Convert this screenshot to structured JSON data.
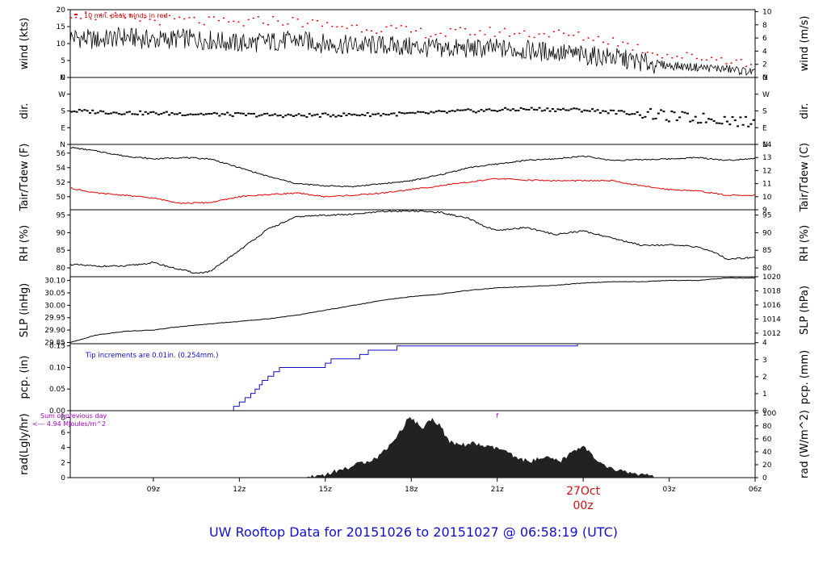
{
  "title": "UW Rooftop Data for 20151026  to  20151027 @ 06:58:19  (UTC)",
  "colors": {
    "title": "#1010c8",
    "date": "#d01010",
    "black": "#000000",
    "red": "#e00000",
    "blue": "#1010c0",
    "purple": "#a000c0"
  },
  "time_axis": {
    "start_hour": 6.1,
    "end_hour": 30.0,
    "ticks": [
      {
        "hour": 9,
        "label": "09z"
      },
      {
        "hour": 12,
        "label": "12z"
      },
      {
        "hour": 15,
        "label": "15z"
      },
      {
        "hour": 18,
        "label": "18z"
      },
      {
        "hour": 21,
        "label": "21z"
      },
      {
        "hour": 27,
        "label": "03z"
      },
      {
        "hour": 30,
        "label": "06z"
      }
    ],
    "date_label": "27Oct",
    "date_sub": "00z",
    "date_hour": 24
  },
  "chart_data": [
    {
      "type": "line",
      "id": "wind",
      "ylabel_left": "wind (kts)",
      "ylabel_right": "wind (m/s)",
      "ylim": [
        0,
        20
      ],
      "yticks": [
        0,
        5,
        10,
        15,
        20
      ],
      "right_ylim": [
        0,
        10.3
      ],
      "right_ticks": [
        0,
        2,
        4,
        6,
        8,
        10
      ],
      "annotation": "10 min. peak winds in red",
      "series": [
        {
          "name": "wind",
          "color": "#000000",
          "x": [
            6.1,
            7,
            8,
            9,
            10,
            11,
            12,
            13,
            14,
            15,
            16,
            17,
            18,
            19,
            20,
            21,
            22,
            23,
            24,
            25,
            26,
            27,
            28,
            29,
            30
          ],
          "y": [
            12,
            11,
            12,
            11,
            11.5,
            11,
            10,
            10.5,
            11,
            10,
            9.5,
            9.5,
            9,
            8.5,
            8.5,
            8.5,
            8,
            7.5,
            6.5,
            6,
            4.5,
            3.5,
            3,
            2.5,
            1.5
          ]
        },
        {
          "name": "10 min. peak winds",
          "color": "#e00000",
          "x": [
            6.1,
            7,
            8,
            9,
            10,
            11,
            12,
            13,
            14,
            15,
            16,
            17,
            18,
            19,
            20,
            21,
            22,
            23,
            24,
            25,
            26,
            27,
            28,
            29,
            30
          ],
          "y": [
            19,
            18,
            17.5,
            17,
            17,
            16.5,
            16,
            17,
            16.5,
            15.5,
            15,
            14.5,
            13.5,
            13,
            13.5,
            13.5,
            13,
            13,
            12,
            11,
            8.5,
            6.5,
            6,
            5.5,
            3.5
          ]
        }
      ]
    },
    {
      "type": "scatter",
      "id": "dir",
      "ylabel_left": "dir.",
      "ylabel_right": "dir.",
      "ylim": [
        0,
        360
      ],
      "ytick_values": [
        0,
        90,
        180,
        270,
        360
      ],
      "ytick_labels": [
        "N",
        "E",
        "S",
        "W",
        "N"
      ],
      "series": [
        {
          "name": "dir",
          "color": "#000000",
          "x": [
            6.1,
            8,
            10,
            12,
            14,
            16,
            18,
            20,
            22,
            24,
            26,
            27,
            28,
            29,
            30
          ],
          "y": [
            180,
            170,
            165,
            160,
            155,
            160,
            165,
            180,
            190,
            185,
            165,
            150,
            140,
            135,
            110
          ]
        }
      ]
    },
    {
      "type": "line",
      "id": "temp",
      "ylabel_left": "Tair/Tdew (F)",
      "ylabel_right": "Tair/Tdew (C)",
      "ylim": [
        48.2,
        57.2
      ],
      "yticks": [
        50,
        52,
        54,
        56
      ],
      "right_ylim": [
        9,
        14
      ],
      "right_ticks": [
        9,
        10,
        11,
        12,
        13,
        14
      ],
      "series": [
        {
          "name": "Tair",
          "color": "#000000",
          "x": [
            6.1,
            7,
            8,
            9,
            10,
            11,
            12,
            13,
            14,
            15,
            16,
            17,
            18,
            19,
            20,
            21,
            22,
            23,
            24,
            25,
            26,
            27,
            28,
            29,
            30
          ],
          "y": [
            56.8,
            56.3,
            55.6,
            55.2,
            55.4,
            55.2,
            54,
            52.8,
            51.8,
            51.5,
            51.4,
            51.8,
            52.2,
            53,
            54,
            54.5,
            55,
            55.2,
            55.6,
            55,
            55.1,
            55.2,
            55.4,
            55,
            55.3
          ]
        },
        {
          "name": "Tdew",
          "color": "#e00000",
          "x": [
            6.1,
            7,
            8,
            9,
            10,
            11,
            12,
            13,
            14,
            15,
            16,
            17,
            18,
            19,
            20,
            21,
            22,
            23,
            24,
            25,
            26,
            27,
            28,
            29,
            30
          ],
          "y": [
            51.2,
            50.5,
            50.2,
            49.8,
            49.1,
            49.2,
            50,
            50.3,
            50.5,
            50,
            50.2,
            50.5,
            51,
            51.5,
            52,
            52.5,
            52.3,
            52.2,
            52.2,
            52.2,
            51.5,
            51,
            50.8,
            50.2,
            50.2
          ]
        }
      ]
    },
    {
      "type": "line",
      "id": "rh",
      "ylabel_left": "RH (%)",
      "ylabel_right": "RH (%)",
      "ylim": [
        77.5,
        96.5
      ],
      "yticks": [
        80,
        85,
        90,
        95
      ],
      "right_ylim": [
        77.5,
        96.5
      ],
      "right_ticks": [
        80,
        85,
        90,
        95
      ],
      "series": [
        {
          "name": "RH",
          "color": "#000000",
          "x": [
            6.1,
            7,
            8,
            9,
            9.7,
            10.5,
            11,
            12,
            13,
            14,
            15,
            16,
            17,
            18,
            19,
            20,
            20.5,
            21,
            22,
            23,
            24,
            25,
            26,
            27,
            28,
            28.7,
            29,
            30
          ],
          "y": [
            81,
            80.5,
            80.5,
            81.5,
            80,
            78.5,
            79,
            85,
            91,
            94.5,
            95,
            95.2,
            96,
            96.2,
            95.8,
            94,
            92,
            90.5,
            91.5,
            89.5,
            90.5,
            88.5,
            86.5,
            86.5,
            86,
            84,
            82.5,
            83
          ]
        }
      ]
    },
    {
      "type": "line",
      "id": "slp",
      "ylabel_left": "SLP (inHg)",
      "ylabel_right": "SLP (hPa)",
      "ylim": [
        29.845,
        30.115
      ],
      "yticks": [
        29.85,
        29.9,
        29.95,
        30.0,
        30.05,
        30.1
      ],
      "ytick_labels": [
        "29.85",
        "29.90",
        "29.95",
        "30.00",
        "30.05",
        "30.10"
      ],
      "right_ylim": [
        1010.5,
        1020.0
      ],
      "right_ticks": [
        1012,
        1014,
        1016,
        1018,
        1020
      ],
      "series": [
        {
          "name": "SLP",
          "color": "#000000",
          "x": [
            6.1,
            7,
            8,
            9,
            10,
            11,
            12,
            13,
            14,
            15,
            16,
            17,
            18,
            19,
            20,
            21,
            22,
            23,
            24,
            25,
            26,
            27,
            28,
            29,
            30
          ],
          "y": [
            29.85,
            29.88,
            29.895,
            29.9,
            29.915,
            29.925,
            29.935,
            29.945,
            29.96,
            29.98,
            30.0,
            30.02,
            30.035,
            30.045,
            30.06,
            30.07,
            30.075,
            30.08,
            30.09,
            30.095,
            30.095,
            30.1,
            30.1,
            30.11,
            30.11
          ]
        }
      ]
    },
    {
      "type": "line",
      "id": "pcp",
      "ylabel_left": "pcp. (in)",
      "ylabel_right": "pcp. (mm)",
      "ylim": [
        0,
        0.155
      ],
      "yticks": [
        0,
        0.05,
        0.1,
        0.15
      ],
      "ytick_labels": [
        "0.00",
        "0.05",
        "0.10",
        "0.15"
      ],
      "right_ylim": [
        0,
        3.937
      ],
      "right_ticks": [
        0,
        1,
        2,
        3,
        4
      ],
      "annotation": "Tip increments are 0.01in. (0.254mm.)",
      "series": [
        {
          "name": "pcp",
          "color": "#1010c0",
          "x": [
            6.1,
            11.8,
            12.0,
            12.2,
            12.4,
            12.55,
            12.7,
            12.8,
            13.0,
            13.2,
            13.4,
            15.0,
            15.2,
            16.2,
            16.5,
            17.0,
            17.5,
            18.4,
            18.8,
            23.8,
            24.5,
            30.0
          ],
          "y": [
            0,
            0.01,
            0.02,
            0.03,
            0.04,
            0.05,
            0.06,
            0.07,
            0.08,
            0.09,
            0.1,
            0.11,
            0.12,
            0.13,
            0.14,
            0.14,
            0.15,
            0.15,
            0.15,
            0.16,
            0.16,
            0.16
          ]
        }
      ]
    },
    {
      "type": "area",
      "id": "rad",
      "ylabel_left": "rad(Lgly/hr)",
      "ylabel_right": "rad (W/m^2)",
      "ylim": [
        0,
        8.9
      ],
      "yticks": [
        0,
        2,
        4,
        6,
        8
      ],
      "right_ylim": [
        0,
        103.5
      ],
      "right_ticks": [
        0,
        20,
        40,
        60,
        80,
        100
      ],
      "annotation_1": "Sum of previous day",
      "annotation_2": "<--- 4.94 MJoules/m^2",
      "marker": "f",
      "series": [
        {
          "name": "rad",
          "color": "#222222",
          "x": [
            6.1,
            14.3,
            15.0,
            15.8,
            16.3,
            16.8,
            17.3,
            17.7,
            17.9,
            18.1,
            18.4,
            18.7,
            19.0,
            19.3,
            19.7,
            20.2,
            20.7,
            21.2,
            21.7,
            22.2,
            22.7,
            23.2,
            23.6,
            24.0,
            24.5,
            25.0,
            25.7,
            26.5,
            30.0
          ],
          "y": [
            0,
            0,
            0.4,
            1.3,
            2.0,
            2.6,
            4.5,
            6.5,
            8.0,
            7.5,
            6.5,
            7.8,
            7.0,
            4.7,
            4.3,
            4.5,
            4.0,
            3.7,
            2.4,
            2.2,
            2.6,
            2.1,
            3.3,
            4.3,
            2.0,
            1.1,
            0.6,
            0.0,
            0.0
          ]
        }
      ]
    }
  ]
}
